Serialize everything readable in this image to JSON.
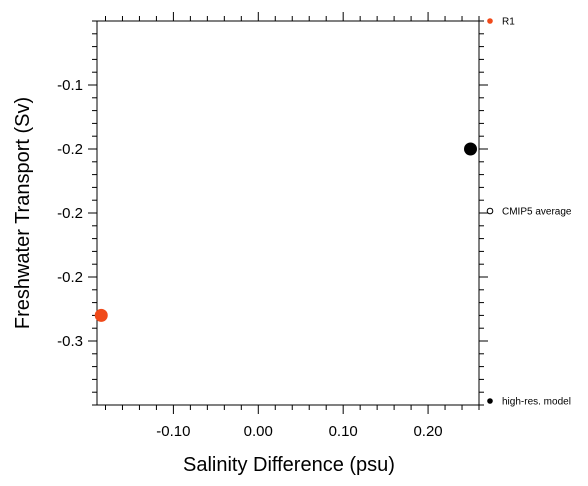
{
  "chart_data": {
    "type": "scatter",
    "xlabel": "Salinity Difference (psu)",
    "ylabel": "Freshwater Transport (Sv)",
    "xlim": [
      -0.19,
      0.26
    ],
    "ylim": [
      -0.35,
      -0.05
    ],
    "xticks": [
      {
        "value": -0.1,
        "label": "-0.10"
      },
      {
        "value": 0.0,
        "label": "0.00"
      },
      {
        "value": 0.1,
        "label": "0.10"
      },
      {
        "value": 0.2,
        "label": "0.20"
      }
    ],
    "yticks": [
      {
        "value": -0.1,
        "label": "-0.1"
      },
      {
        "value": -0.15,
        "label": "-0.2"
      },
      {
        "value": -0.2,
        "label": "-0.2"
      },
      {
        "value": -0.25,
        "label": "-0.2"
      },
      {
        "value": -0.3,
        "label": "-0.3"
      }
    ],
    "grid": false,
    "legend_position": "right",
    "points": [
      {
        "series": "R1",
        "x": -0.185,
        "y": -0.28,
        "color": "#f04a1a"
      },
      {
        "series": "high-res. model",
        "x": 0.25,
        "y": -0.15,
        "color": "#000000"
      }
    ],
    "legend": [
      {
        "label": "R1",
        "marker": "filled",
        "color": "#f04a1a"
      },
      {
        "label": "CMIP5 average",
        "marker": "open",
        "color": "#000000"
      },
      {
        "label": "high-res. model",
        "marker": "filled",
        "color": "#000000"
      }
    ]
  }
}
